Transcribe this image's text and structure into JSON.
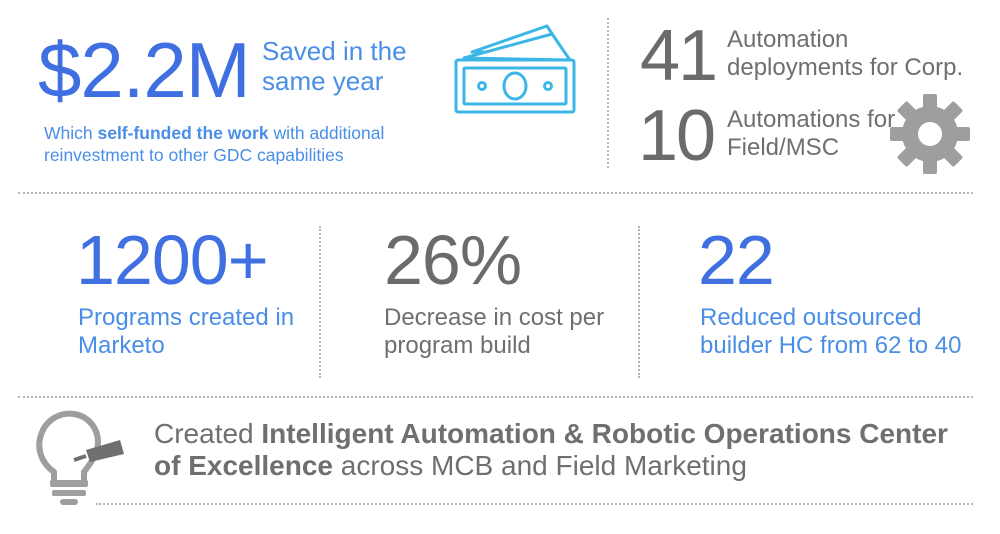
{
  "savings": {
    "value": "$2.2M",
    "label": "Saved in the same year",
    "note_prefix": "Which ",
    "note_bold": "self-funded the work",
    "note_suffix": " with additional reinvestment to other GDC capabilities",
    "icon": "money-bills-icon"
  },
  "automation": {
    "corp": {
      "value": "41",
      "label": "Automation deployments for Corp."
    },
    "field": {
      "value": "10",
      "label": "Automations for Field/MSC"
    },
    "icon": "gear-icon"
  },
  "metrics": [
    {
      "value": "1200+",
      "label": "Programs created in Marketo"
    },
    {
      "value": "26%",
      "label": "Decrease in cost per program build"
    },
    {
      "value": "22",
      "label": "Reduced outsourced builder HC from 62 to 40"
    }
  ],
  "coe": {
    "prefix": "Created ",
    "bold": "Intelligent Automation & Robotic Operations Center of Excellence",
    "suffix": " across MCB and Field Marketing",
    "icon": "lightbulb-icon"
  },
  "colors": {
    "accent_dark_blue": "#3f6fe0",
    "accent_blue": "#4a8ee6",
    "icon_cyan": "#3cb6e6",
    "gray_text": "#6f6f6f",
    "gear_gray": "#9e9e9e"
  }
}
